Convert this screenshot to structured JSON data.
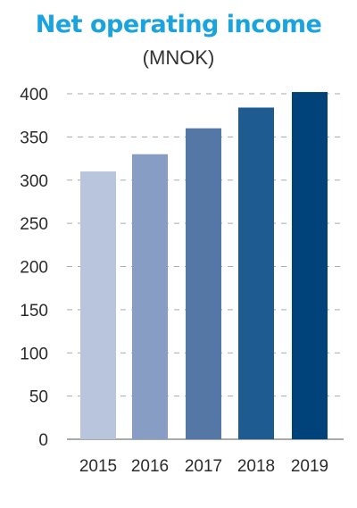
{
  "chart_data": {
    "type": "bar",
    "title": "Net operating income",
    "subtitle": "(MNOK)",
    "categories": [
      "2015",
      "2016",
      "2017",
      "2018",
      "2019"
    ],
    "values": [
      310,
      330,
      360,
      384,
      402
    ],
    "colors": [
      "#b9c5dd",
      "#889dc3",
      "#5577a6",
      "#1e5b91",
      "#00427a"
    ],
    "ylim": [
      0,
      400
    ],
    "yticks": [
      "0",
      "50",
      "100",
      "150",
      "200",
      "250",
      "300",
      "350",
      "400"
    ],
    "grid": true
  }
}
